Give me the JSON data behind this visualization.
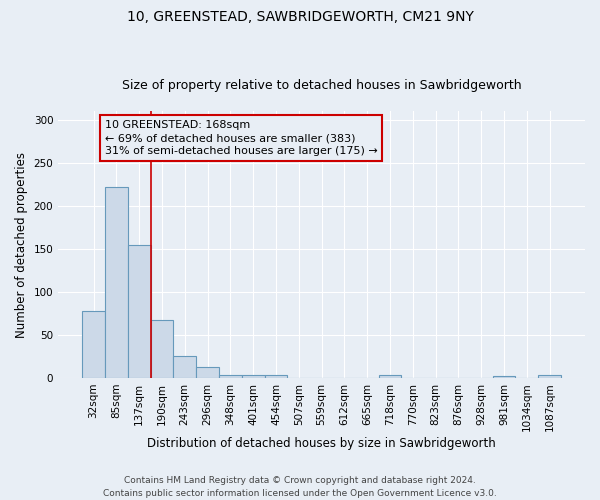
{
  "title_line1": "10, GREENSTEAD, SAWBRIDGEWORTH, CM21 9NY",
  "title_line2": "Size of property relative to detached houses in Sawbridgeworth",
  "xlabel": "Distribution of detached houses by size in Sawbridgeworth",
  "ylabel": "Number of detached properties",
  "footnote": "Contains HM Land Registry data © Crown copyright and database right 2024.\nContains public sector information licensed under the Open Government Licence v3.0.",
  "bin_labels": [
    "32sqm",
    "85sqm",
    "137sqm",
    "190sqm",
    "243sqm",
    "296sqm",
    "348sqm",
    "401sqm",
    "454sqm",
    "507sqm",
    "559sqm",
    "612sqm",
    "665sqm",
    "718sqm",
    "770sqm",
    "823sqm",
    "876sqm",
    "928sqm",
    "981sqm",
    "1034sqm",
    "1087sqm"
  ],
  "bar_values": [
    78,
    222,
    155,
    67,
    26,
    13,
    3,
    3,
    3,
    0,
    0,
    0,
    0,
    3,
    0,
    0,
    0,
    0,
    2,
    0,
    3
  ],
  "bar_color": "#ccd9e8",
  "bar_edgecolor": "#6699bb",
  "bar_linewidth": 0.8,
  "ylim": [
    0,
    310
  ],
  "yticks": [
    0,
    50,
    100,
    150,
    200,
    250,
    300
  ],
  "vline_color": "#cc0000",
  "vline_linewidth": 1.2,
  "vline_x_index": 2.5,
  "annotation_text": "10 GREENSTEAD: 168sqm\n← 69% of detached houses are smaller (383)\n31% of semi-detached houses are larger (175) →",
  "bg_color": "#e8eef5",
  "grid_color": "#ffffff",
  "title_fontsize": 10,
  "subtitle_fontsize": 9,
  "axis_label_fontsize": 8.5,
  "tick_fontsize": 7.5,
  "annotation_fontsize": 8,
  "footnote_fontsize": 6.5
}
